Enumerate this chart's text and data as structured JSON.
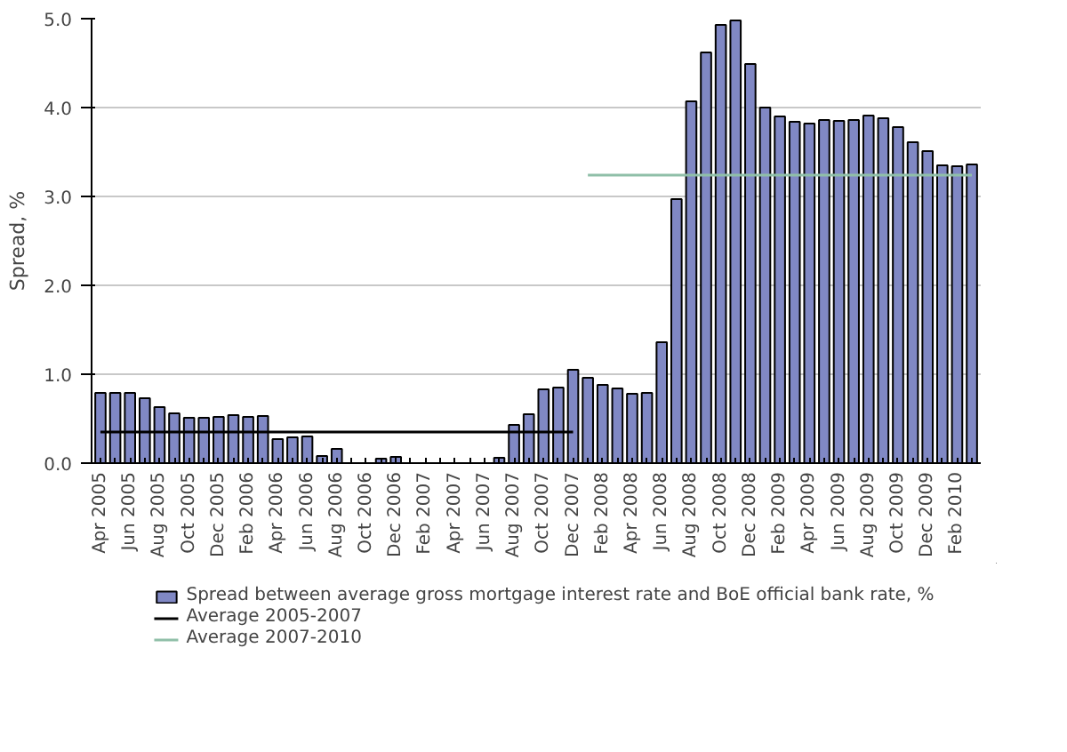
{
  "chart_data": {
    "type": "bar",
    "ylabel": "Spread, %",
    "categories": [
      "Apr 2005",
      null,
      "Jun 2005",
      null,
      "Aug 2005",
      null,
      "Oct 2005",
      null,
      "Dec 2005",
      null,
      "Feb 2006",
      null,
      "Apr 2006",
      null,
      "Jun 2006",
      null,
      "Aug 2006",
      null,
      "Oct 2006",
      null,
      "Dec 2006",
      null,
      "Feb 2007",
      null,
      "Apr 2007",
      null,
      "Jun 2007",
      null,
      "Aug 2007",
      null,
      "Oct 2007",
      null,
      "Dec 2007",
      null,
      "Feb 2008",
      null,
      "Apr 2008",
      null,
      "Jun 2008",
      null,
      "Aug 2008",
      null,
      "Oct 2008",
      null,
      "Dec 2008",
      null,
      "Feb 2009",
      null,
      "Apr 2009",
      null,
      "Jun 2009",
      null,
      "Aug 2009",
      null,
      "Oct 2009",
      null,
      "Dec 2009",
      null,
      "Feb 2010",
      null
    ],
    "series": [
      {
        "name": "Spread between average gross mortgage interest rate and BoE official bank rate, %",
        "type": "bar",
        "color": "#8088c4",
        "values": [
          0.79,
          0.79,
          0.79,
          0.73,
          0.63,
          0.56,
          0.51,
          0.51,
          0.52,
          0.54,
          0.52,
          0.53,
          0.27,
          0.29,
          0.3,
          0.08,
          0.16,
          0,
          0,
          0.05,
          0.07,
          0,
          0,
          0,
          0,
          0,
          0,
          0.06,
          0.43,
          0.55,
          0.83,
          0.85,
          1.05,
          0.96,
          0.88,
          0.84,
          0.78,
          0.79,
          1.36,
          2.97,
          4.07,
          4.62,
          4.93,
          4.98,
          4.49,
          4.0,
          3.9,
          3.84,
          3.82,
          3.86,
          3.85,
          3.86,
          3.91,
          3.88,
          3.78,
          3.61,
          3.51,
          3.35,
          3.34,
          3.36
        ]
      },
      {
        "name": "Average 2005-2007",
        "type": "line",
        "color": "#000000",
        "values": [
          0.35,
          0.35,
          0.35,
          0.35,
          0.35,
          0.35,
          0.35,
          0.35,
          0.35,
          0.35,
          0.35,
          0.35,
          0.35,
          0.35,
          0.35,
          0.35,
          0.35,
          0.35,
          0.35,
          0.35,
          0.35,
          0.35,
          0.35,
          0.35,
          0.35,
          0.35,
          0.35,
          0.35,
          0.35,
          0.35,
          0.35,
          0.35,
          0.35,
          null,
          null,
          null,
          null,
          null,
          null,
          null,
          null,
          null,
          null,
          null,
          null,
          null,
          null,
          null,
          null,
          null,
          null,
          null,
          null,
          null,
          null,
          null,
          null,
          null,
          null,
          null
        ]
      },
      {
        "name": "Average 2007-2010",
        "type": "line",
        "color": "#8fbfa8",
        "values": [
          null,
          null,
          null,
          null,
          null,
          null,
          null,
          null,
          null,
          null,
          null,
          null,
          null,
          null,
          null,
          null,
          null,
          null,
          null,
          null,
          null,
          null,
          null,
          null,
          null,
          null,
          null,
          null,
          null,
          null,
          null,
          null,
          null,
          3.24,
          3.24,
          3.24,
          3.24,
          3.24,
          3.24,
          3.24,
          3.24,
          3.24,
          3.24,
          3.24,
          3.24,
          3.24,
          3.24,
          3.24,
          3.24,
          3.24,
          3.24,
          3.24,
          3.24,
          3.24,
          3.24,
          3.24,
          3.24,
          3.24,
          3.24,
          3.24
        ]
      }
    ],
    "ylim": [
      0,
      5
    ],
    "yticks": [
      {
        "value": 0,
        "label": "0.0"
      },
      {
        "value": 1,
        "label": "1.0"
      },
      {
        "value": 2,
        "label": "2.0"
      },
      {
        "value": 3,
        "label": "3.0"
      },
      {
        "value": 4,
        "label": "4.0"
      },
      {
        "value": 5,
        "label": "5.0"
      }
    ],
    "grid": "y",
    "legend": "bottom"
  }
}
